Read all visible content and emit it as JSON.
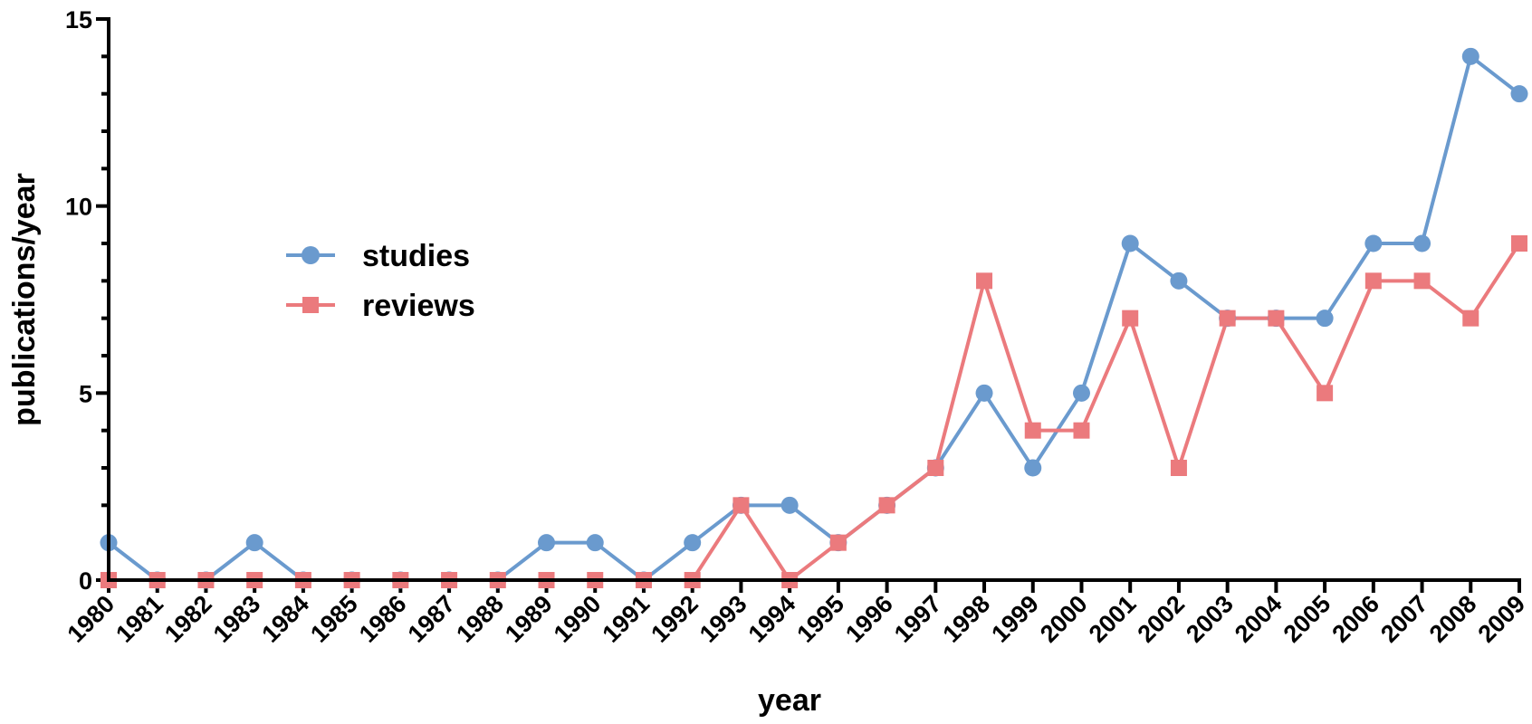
{
  "chart_data": {
    "type": "line",
    "xlabel": "year",
    "ylabel": "publications/year",
    "ylim": [
      0,
      15
    ],
    "yticks": [
      "0",
      "5",
      "10",
      "15"
    ],
    "x": [
      "1980",
      "1981",
      "1982",
      "1983",
      "1984",
      "1985",
      "1986",
      "1987",
      "1988",
      "1989",
      "1990",
      "1991",
      "1992",
      "1993",
      "1994",
      "1995",
      "1996",
      "1997",
      "1998",
      "1999",
      "2000",
      "2001",
      "2002",
      "2003",
      "2004",
      "2005",
      "2006",
      "2007",
      "2008",
      "2009"
    ],
    "legend_position": "upper-left",
    "grid": false,
    "series": [
      {
        "name": "studies",
        "marker": "circle",
        "color": "#6A9ACE",
        "values": [
          1,
          0,
          0,
          1,
          0,
          0,
          0,
          0,
          0,
          1,
          1,
          0,
          1,
          2,
          2,
          1,
          2,
          3,
          5,
          3,
          5,
          9,
          8,
          7,
          7,
          7,
          9,
          9,
          14,
          13
        ]
      },
      {
        "name": "reviews",
        "marker": "square",
        "color": "#EB7A7D",
        "values": [
          0,
          0,
          0,
          0,
          0,
          0,
          0,
          0,
          0,
          0,
          0,
          0,
          0,
          2,
          0,
          1,
          2,
          3,
          8,
          4,
          4,
          7,
          3,
          7,
          7,
          5,
          8,
          8,
          7,
          9
        ]
      }
    ]
  }
}
